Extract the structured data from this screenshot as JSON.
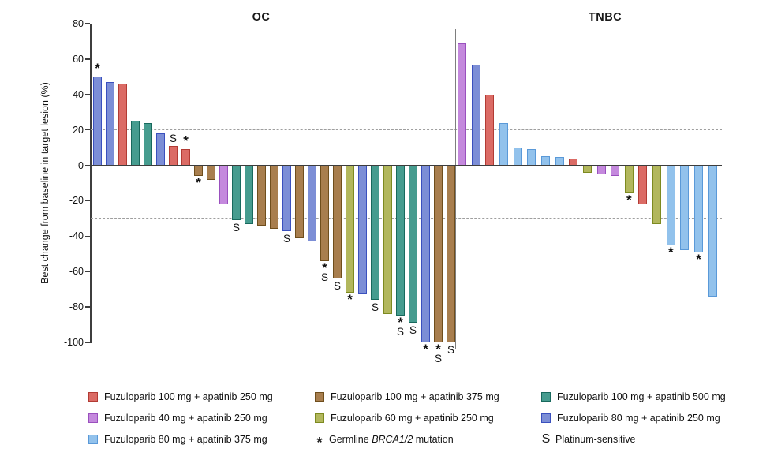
{
  "chart_data": {
    "type": "bar",
    "subtype": "waterfall",
    "ylabel": "Best change from baseline in target lesion (%)",
    "ylim": [
      -100,
      80
    ],
    "yticks": [
      80,
      60,
      40,
      20,
      0,
      -20,
      -40,
      -60,
      -80,
      -100
    ],
    "reference_lines": [
      20,
      -30
    ],
    "grid": "off",
    "legend_position": "bottom",
    "marker_meanings": {
      "*": "Germline BRCA1/2 mutation",
      "S": "Platinum-sensitive"
    },
    "groups": {
      "f100a250": {
        "label": "Fuzuloparib 100 mg + apatinib 250 mg",
        "fill": "#DB6B65",
        "stroke": "#B23B34"
      },
      "f100a375": {
        "label": "Fuzuloparib 100 mg + apatinib 375 mg",
        "fill": "#A87E4E",
        "stroke": "#6F4E1C"
      },
      "f100a500": {
        "label": "Fuzuloparib 100 mg + apatinib 500 mg",
        "fill": "#469C8F",
        "stroke": "#18695D"
      },
      "f40a250": {
        "label": "Fuzuloparib 40 mg + apatinib 250 mg",
        "fill": "#C489DD",
        "stroke": "#9A50BE"
      },
      "f60a250": {
        "label": "Fuzuloparib 60 mg + apatinib 250 mg",
        "fill": "#B2B75D",
        "stroke": "#7D8A20"
      },
      "f80a250": {
        "label": "Fuzuloparib 80 mg + apatinib 250 mg",
        "fill": "#7C8ED6",
        "stroke": "#3A50BE"
      },
      "f80a375": {
        "label": "Fuzuloparib 80 mg + apatinib 375 mg",
        "fill": "#92C2EC",
        "stroke": "#5A99D8"
      }
    },
    "panels": [
      {
        "title": "OC",
        "bars": [
          {
            "g": "f80a250",
            "v": 50,
            "m": "*"
          },
          {
            "g": "f80a250",
            "v": 47
          },
          {
            "g": "f100a250",
            "v": 46
          },
          {
            "g": "f100a500",
            "v": 25
          },
          {
            "g": "f100a500",
            "v": 24
          },
          {
            "g": "f80a250",
            "v": 18
          },
          {
            "g": "f100a250",
            "v": 11,
            "m": "S"
          },
          {
            "g": "f100a250",
            "v": 9,
            "m": "*"
          },
          {
            "g": "f100a375",
            "v": -6,
            "m": "*"
          },
          {
            "g": "f100a375",
            "v": -8
          },
          {
            "g": "f40a250",
            "v": -22
          },
          {
            "g": "f100a500",
            "v": -31,
            "m": "S"
          },
          {
            "g": "f100a500",
            "v": -33
          },
          {
            "g": "f100a375",
            "v": -34
          },
          {
            "g": "f100a375",
            "v": -36
          },
          {
            "g": "f80a250",
            "v": -37,
            "m": "S"
          },
          {
            "g": "f100a375",
            "v": -41
          },
          {
            "g": "f80a250",
            "v": -43
          },
          {
            "g": "f100a375",
            "v": -54,
            "m": "*S"
          },
          {
            "g": "f100a375",
            "v": -64,
            "m": "S"
          },
          {
            "g": "f60a250",
            "v": -72,
            "m": "*"
          },
          {
            "g": "f80a250",
            "v": -73
          },
          {
            "g": "f100a500",
            "v": -76,
            "m": "S"
          },
          {
            "g": "f60a250",
            "v": -84
          },
          {
            "g": "f100a500",
            "v": -85,
            "m": "*S"
          },
          {
            "g": "f100a500",
            "v": -89,
            "m": "S"
          },
          {
            "g": "f80a250",
            "v": -100,
            "m": "*"
          },
          {
            "g": "f100a375",
            "v": -100,
            "m": "*S"
          },
          {
            "g": "f100a375",
            "v": -100,
            "m": "S"
          }
        ]
      },
      {
        "title": "TNBC",
        "bars": [
          {
            "g": "f40a250",
            "v": 69
          },
          {
            "g": "f80a250",
            "v": 57
          },
          {
            "g": "f100a250",
            "v": 40
          },
          {
            "g": "f80a375",
            "v": 24
          },
          {
            "g": "f80a375",
            "v": 10
          },
          {
            "g": "f80a375",
            "v": 9
          },
          {
            "g": "f80a375",
            "v": 5
          },
          {
            "g": "f80a375",
            "v": 4.5
          },
          {
            "g": "f100a250",
            "v": 4
          },
          {
            "g": "f60a250",
            "v": -4
          },
          {
            "g": "f40a250",
            "v": -5
          },
          {
            "g": "f40a250",
            "v": -6
          },
          {
            "g": "f60a250",
            "v": -16,
            "m": "*"
          },
          {
            "g": "f100a250",
            "v": -22
          },
          {
            "g": "f60a250",
            "v": -33
          },
          {
            "g": "f80a375",
            "v": -45,
            "m": "*"
          },
          {
            "g": "f80a375",
            "v": -48
          },
          {
            "g": "f80a375",
            "v": -49,
            "m": "*"
          },
          {
            "g": "f80a375",
            "v": -74
          }
        ]
      }
    ]
  },
  "legend": {
    "rows": [
      [
        {
          "type": "swatch",
          "group": "f100a250"
        },
        {
          "type": "swatch",
          "group": "f100a375"
        },
        {
          "type": "swatch",
          "group": "f100a500"
        }
      ],
      [
        {
          "type": "swatch",
          "group": "f40a250"
        },
        {
          "type": "swatch",
          "group": "f60a250"
        },
        {
          "type": "swatch",
          "group": "f80a250"
        }
      ],
      [
        {
          "type": "swatch",
          "group": "f80a375"
        },
        {
          "type": "symbol",
          "symbol": "*",
          "label_parts": [
            "Germline ",
            "BRCA1/2",
            " mutation"
          ],
          "italic_part": 1
        },
        {
          "type": "symbol",
          "symbol": "S",
          "label": "Platinum-sensitive"
        }
      ]
    ]
  }
}
